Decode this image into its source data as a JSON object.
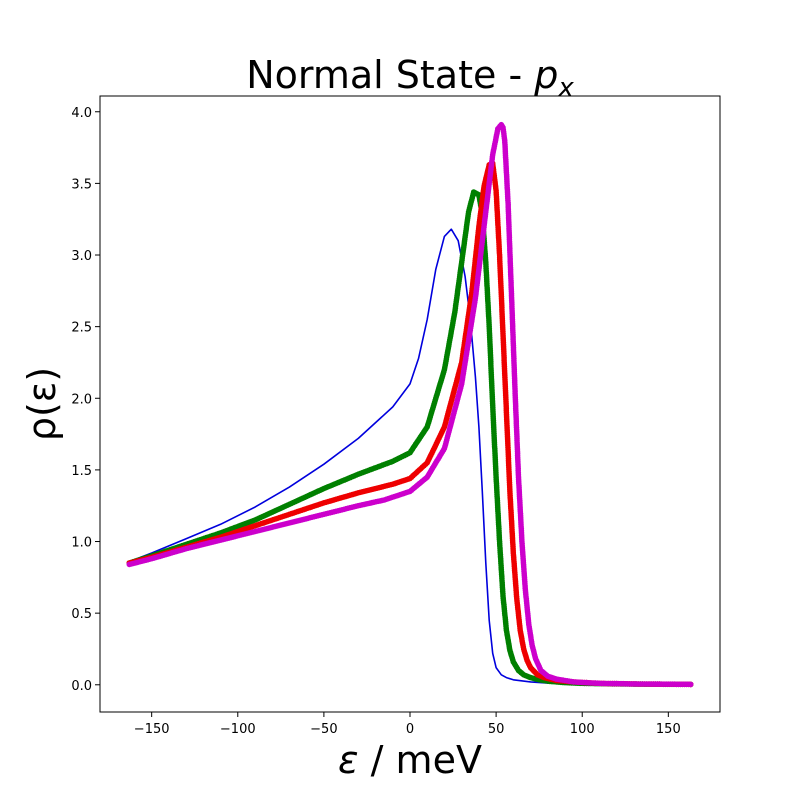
{
  "chart_data": {
    "type": "line",
    "title": "Normal State - ",
    "title_symbol": "p",
    "title_subscript": "x",
    "xlabel": "ε / meV",
    "xlabel_symbol": "ε",
    "xlabel_rest": " / meV",
    "ylabel": "ρ(ε)",
    "xlim": [
      -180,
      180
    ],
    "ylim": [
      -0.19,
      4.11
    ],
    "x_ticks": [
      -150,
      -100,
      -50,
      0,
      50,
      100,
      150
    ],
    "x_tick_labels": [
      "−150",
      "−100",
      "−50",
      "0",
      "50",
      "100",
      "150"
    ],
    "y_ticks": [
      0.0,
      0.5,
      1.0,
      1.5,
      2.0,
      2.5,
      3.0,
      3.5,
      4.0
    ],
    "y_tick_labels": [
      "0.0",
      "0.5",
      "1.0",
      "1.5",
      "2.0",
      "2.5",
      "3.0",
      "3.5",
      "4.0"
    ],
    "grid": false,
    "series": [
      {
        "name": "blue line",
        "color": "#0000dd",
        "style": "line",
        "x": [
          -163,
          -150,
          -130,
          -110,
          -90,
          -70,
          -50,
          -30,
          -10,
          0,
          5,
          10,
          15,
          20,
          24,
          28,
          32,
          35,
          38,
          40,
          42,
          44,
          46,
          48,
          50,
          53,
          56,
          60,
          70,
          80,
          100,
          120,
          140,
          163
        ],
        "y": [
          0.86,
          0.92,
          1.02,
          1.12,
          1.24,
          1.38,
          1.54,
          1.72,
          1.94,
          2.1,
          2.28,
          2.55,
          2.9,
          3.13,
          3.18,
          3.1,
          2.85,
          2.55,
          2.15,
          1.8,
          1.35,
          0.85,
          0.45,
          0.22,
          0.12,
          0.07,
          0.05,
          0.035,
          0.02,
          0.012,
          0.006,
          0.004,
          0.003,
          0.002
        ]
      },
      {
        "name": "green dots",
        "color": "#008000",
        "style": "dots",
        "x": [
          -163,
          -150,
          -130,
          -110,
          -90,
          -70,
          -50,
          -30,
          -10,
          0,
          10,
          20,
          26,
          30,
          34,
          37,
          40,
          42,
          44,
          46,
          48,
          50,
          52,
          54,
          56,
          58,
          60,
          63,
          66,
          70,
          75,
          80,
          90,
          100,
          120,
          140,
          163
        ],
        "y": [
          0.85,
          0.9,
          0.98,
          1.06,
          1.15,
          1.26,
          1.37,
          1.47,
          1.56,
          1.62,
          1.8,
          2.2,
          2.6,
          2.95,
          3.3,
          3.44,
          3.42,
          3.28,
          2.95,
          2.5,
          1.95,
          1.45,
          1.0,
          0.62,
          0.38,
          0.24,
          0.16,
          0.1,
          0.07,
          0.05,
          0.035,
          0.025,
          0.015,
          0.01,
          0.006,
          0.004,
          0.003
        ]
      },
      {
        "name": "red dots",
        "color": "#ee0000",
        "style": "dots",
        "x": [
          -163,
          -150,
          -130,
          -110,
          -90,
          -70,
          -50,
          -30,
          -10,
          0,
          10,
          20,
          30,
          36,
          40,
          43,
          46,
          48,
          50,
          52,
          54,
          56,
          58,
          60,
          62,
          64,
          66,
          68,
          70,
          74,
          78,
          85,
          95,
          110,
          130,
          150,
          163
        ],
        "y": [
          0.85,
          0.89,
          0.96,
          1.03,
          1.11,
          1.19,
          1.27,
          1.34,
          1.4,
          1.44,
          1.55,
          1.8,
          2.25,
          2.75,
          3.2,
          3.48,
          3.63,
          3.64,
          3.45,
          3.0,
          2.45,
          1.9,
          1.35,
          0.92,
          0.6,
          0.38,
          0.25,
          0.17,
          0.12,
          0.07,
          0.05,
          0.03,
          0.02,
          0.01,
          0.006,
          0.004,
          0.003
        ]
      },
      {
        "name": "magenta dots",
        "color": "#cc00cc",
        "style": "dots",
        "x": [
          -163,
          -150,
          -130,
          -110,
          -90,
          -70,
          -50,
          -30,
          -15,
          0,
          10,
          20,
          30,
          38,
          44,
          48,
          51,
          53,
          54,
          55,
          57,
          59,
          61,
          63,
          65,
          67,
          69,
          71,
          73,
          76,
          80,
          85,
          95,
          110,
          130,
          150,
          163
        ],
        "y": [
          0.84,
          0.88,
          0.95,
          1.01,
          1.07,
          1.13,
          1.19,
          1.25,
          1.29,
          1.35,
          1.45,
          1.65,
          2.1,
          2.7,
          3.3,
          3.7,
          3.88,
          3.91,
          3.89,
          3.8,
          3.35,
          2.7,
          2.05,
          1.45,
          1.0,
          0.66,
          0.42,
          0.27,
          0.18,
          0.1,
          0.06,
          0.04,
          0.02,
          0.01,
          0.006,
          0.004,
          0.003
        ]
      }
    ]
  }
}
